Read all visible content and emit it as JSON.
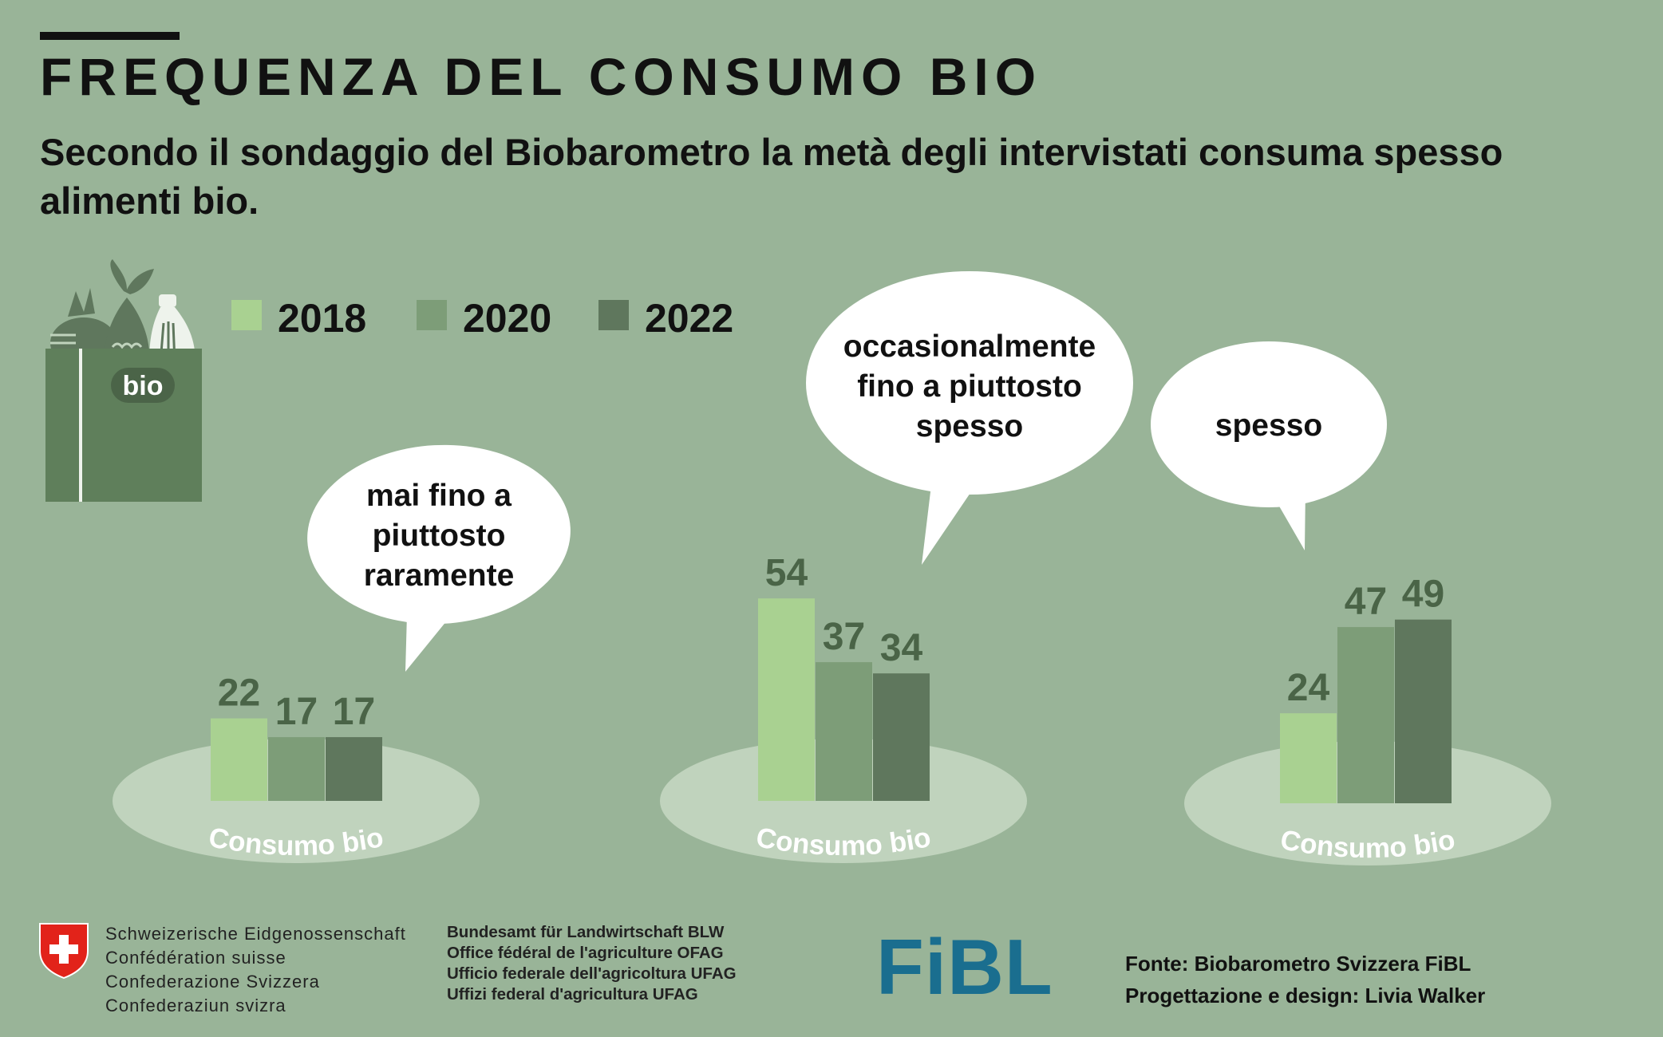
{
  "header": {
    "title": "FREQUENZA DEL CONSUMO BIO",
    "subtitle": "Secondo il sondaggio del Biobarometro la metà degli intervistati consuma spesso alimenti bio."
  },
  "bag_icon": {
    "label": "bio"
  },
  "colors": {
    "background": "#99b498",
    "2018": "#a9d191",
    "2020": "#7d9d78",
    "2022": "#5f775d",
    "ellipse": "#c0d3bd",
    "value_text": "#4a6447"
  },
  "chart_data": {
    "type": "bar",
    "series": [
      {
        "name": "2018",
        "values": [
          22,
          54,
          24
        ]
      },
      {
        "name": "2020",
        "values": [
          17,
          37,
          47
        ]
      },
      {
        "name": "2022",
        "values": [
          17,
          34,
          49
        ]
      }
    ],
    "groups": [
      {
        "bubble": "mai fino a piuttosto raramente",
        "base_label": "Consumo bio"
      },
      {
        "bubble": "occasionalmente fino a piuttosto spesso",
        "base_label": "Consumo bio"
      },
      {
        "bubble": "spesso",
        "base_label": "Consumo bio"
      }
    ],
    "legend_position": "top-left"
  },
  "footer": {
    "ch_lines": [
      "Schweizerische Eidgenossenschaft",
      "Confédération suisse",
      "Confederazione Svizzera",
      "Confederaziun svizra"
    ],
    "blw_lines": [
      "Bundesamt für Landwirtschaft BLW",
      "Office fédéral de l'agriculture OFAG",
      "Ufficio federale dell'agricoltura UFAG",
      "Uffizi federal d'agricultura UFAG"
    ],
    "fibl_logo": "FiBL",
    "source": "Fonte: Biobarometro Svizzera FiBL",
    "design": "Progettazione e design: Livia Walker"
  }
}
